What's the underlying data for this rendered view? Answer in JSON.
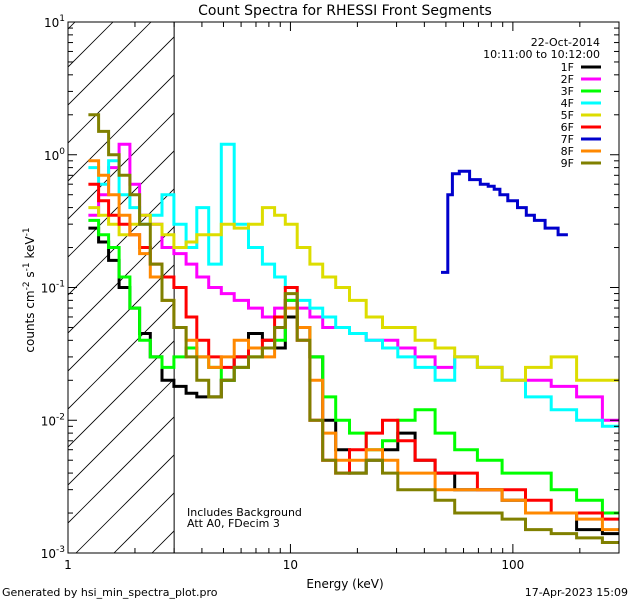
{
  "chart_data": {
    "type": "line",
    "title": "Count Spectra for RHESSI Front Segments",
    "xlabel": "Energy (keV)",
    "ylabel_parts": [
      "counts cm",
      "-2",
      " s",
      "-1",
      " keV",
      "-1"
    ],
    "xscale": "log",
    "yscale": "log",
    "xlim": [
      1,
      300
    ],
    "ylim": [
      0.001,
      10
    ],
    "x_ticks": [
      {
        "value": 1,
        "label": "1"
      },
      {
        "value": 10,
        "label": "10"
      },
      {
        "value": 100,
        "label": "100"
      }
    ],
    "y_ticks": [
      {
        "value": 0.001,
        "base": "10",
        "exp": "-3"
      },
      {
        "value": 0.01,
        "base": "10",
        "exp": "-2"
      },
      {
        "value": 0.1,
        "base": "10",
        "exp": "-1"
      },
      {
        "value": 1,
        "base": "10",
        "exp": "0"
      },
      {
        "value": 10,
        "base": "10",
        "exp": "1"
      }
    ],
    "hatched_region": {
      "x_from": 1,
      "x_to": 3
    },
    "legend": {
      "placement": "top-right",
      "date": "22-Oct-2014",
      "time_range": "10:11:00 to 10:12:00"
    },
    "annotations": [
      "Includes Background",
      "Att A0, FDecim 3"
    ],
    "series": [
      {
        "name": "1F",
        "color": "#000000",
        "x": [
          1.3,
          1.45,
          1.6,
          1.8,
          2.0,
          2.2,
          2.5,
          2.8,
          3.2,
          3.6,
          4.0,
          4.6,
          5.2,
          6.0,
          7.0,
          8.0,
          9.0,
          10.0,
          11.5,
          13.0,
          15.0,
          17.0,
          20.0,
          24.0,
          28.0,
          33.0,
          40.0,
          50.0,
          60.0,
          80.0,
          100.0,
          130.0,
          170.0,
          220.0,
          290.0
        ],
        "y": [
          0.28,
          0.22,
          0.16,
          0.1,
          0.07,
          0.045,
          0.03,
          0.02,
          0.018,
          0.016,
          0.015,
          0.015,
          0.02,
          0.03,
          0.045,
          0.04,
          0.035,
          0.06,
          0.05,
          0.03,
          0.01,
          0.006,
          0.004,
          0.005,
          0.006,
          0.008,
          0.005,
          0.004,
          0.003,
          0.003,
          0.0025,
          0.002,
          0.002,
          0.0015,
          0.0014
        ]
      },
      {
        "name": "2F",
        "color": "#ff00ff",
        "x": [
          1.3,
          1.45,
          1.6,
          1.8,
          2.0,
          2.2,
          2.5,
          2.8,
          3.2,
          3.6,
          4.0,
          4.6,
          5.2,
          6.0,
          7.0,
          8.0,
          9.0,
          10.0,
          11.5,
          13.0,
          15.0,
          17.0,
          20.0,
          24.0,
          28.0,
          33.0,
          40.0,
          50.0,
          60.0,
          80.0,
          100.0,
          130.0,
          170.0,
          220.0,
          290.0
        ],
        "y": [
          0.35,
          0.5,
          0.8,
          1.2,
          0.6,
          0.35,
          0.3,
          0.2,
          0.18,
          0.15,
          0.12,
          0.1,
          0.09,
          0.08,
          0.07,
          0.06,
          0.07,
          0.08,
          0.07,
          0.06,
          0.05,
          0.05,
          0.045,
          0.04,
          0.04,
          0.035,
          0.03,
          0.025,
          0.03,
          0.025,
          0.02,
          0.02,
          0.018,
          0.015,
          0.01
        ]
      },
      {
        "name": "3F",
        "color": "#00ff00",
        "x": [
          1.3,
          1.45,
          1.6,
          1.8,
          2.0,
          2.2,
          2.5,
          2.8,
          3.2,
          3.6,
          4.0,
          4.6,
          5.2,
          6.0,
          7.0,
          8.0,
          9.0,
          10.0,
          11.5,
          13.0,
          15.0,
          17.0,
          20.0,
          24.0,
          28.0,
          33.0,
          40.0,
          50.0,
          60.0,
          80.0,
          100.0,
          130.0,
          170.0,
          220.0,
          290.0
        ],
        "y": [
          0.32,
          0.25,
          0.2,
          0.12,
          0.07,
          0.04,
          0.03,
          0.025,
          0.03,
          0.035,
          0.03,
          0.025,
          0.02,
          0.025,
          0.03,
          0.035,
          0.04,
          0.08,
          0.05,
          0.03,
          0.015,
          0.01,
          0.008,
          0.006,
          0.007,
          0.01,
          0.012,
          0.008,
          0.006,
          0.005,
          0.004,
          0.004,
          0.003,
          0.0025,
          0.002
        ]
      },
      {
        "name": "4F",
        "color": "#00ffff",
        "x": [
          1.3,
          1.45,
          1.6,
          1.8,
          2.0,
          2.2,
          2.5,
          2.8,
          3.2,
          3.6,
          4.0,
          4.6,
          5.2,
          6.0,
          7.0,
          8.0,
          9.0,
          10.0,
          11.5,
          13.0,
          15.0,
          17.0,
          20.0,
          24.0,
          28.0,
          33.0,
          40.0,
          50.0,
          60.0,
          80.0,
          100.0,
          130.0,
          170.0,
          220.0,
          290.0
        ],
        "y": [
          0.8,
          0.6,
          0.9,
          0.5,
          0.4,
          0.3,
          0.35,
          0.5,
          0.3,
          0.2,
          0.4,
          0.15,
          1.2,
          0.3,
          0.2,
          0.15,
          0.12,
          0.1,
          0.08,
          0.07,
          0.06,
          0.05,
          0.045,
          0.04,
          0.035,
          0.03,
          0.025,
          0.02,
          0.03,
          0.025,
          0.02,
          0.015,
          0.012,
          0.01,
          0.009
        ]
      },
      {
        "name": "5F",
        "color": "#dddd00",
        "x": [
          1.3,
          1.45,
          1.6,
          1.8,
          2.0,
          2.2,
          2.5,
          2.8,
          3.2,
          3.6,
          4.0,
          4.6,
          5.2,
          6.0,
          7.0,
          8.0,
          9.0,
          10.0,
          11.5,
          13.0,
          15.0,
          17.0,
          20.0,
          24.0,
          28.0,
          33.0,
          40.0,
          50.0,
          60.0,
          80.0,
          100.0,
          130.0,
          170.0,
          220.0,
          290.0
        ],
        "y": [
          0.4,
          0.35,
          0.3,
          0.25,
          0.3,
          0.35,
          0.3,
          0.25,
          0.2,
          0.22,
          0.25,
          0.25,
          0.3,
          0.28,
          0.3,
          0.4,
          0.35,
          0.3,
          0.2,
          0.15,
          0.12,
          0.1,
          0.08,
          0.06,
          0.05,
          0.05,
          0.04,
          0.035,
          0.03,
          0.025,
          0.02,
          0.025,
          0.03,
          0.02,
          0.02
        ]
      },
      {
        "name": "6F",
        "color": "#ff0000",
        "x": [
          1.3,
          1.45,
          1.6,
          1.8,
          2.0,
          2.2,
          2.5,
          2.8,
          3.2,
          3.6,
          4.0,
          4.6,
          5.2,
          6.0,
          7.0,
          8.0,
          9.0,
          10.0,
          11.5,
          13.0,
          15.0,
          17.0,
          20.0,
          24.0,
          28.0,
          33.0,
          40.0,
          50.0,
          60.0,
          80.0,
          100.0,
          130.0,
          170.0,
          220.0,
          290.0
        ],
        "y": [
          0.6,
          0.45,
          0.35,
          0.3,
          0.25,
          0.2,
          0.15,
          0.12,
          0.1,
          0.06,
          0.04,
          0.03,
          0.025,
          0.03,
          0.035,
          0.04,
          0.06,
          0.1,
          0.04,
          0.01,
          0.005,
          0.004,
          0.006,
          0.008,
          0.01,
          0.007,
          0.005,
          0.004,
          0.004,
          0.003,
          0.003,
          0.0025,
          0.002,
          0.002,
          0.0018
        ]
      },
      {
        "name": "7F",
        "color": "#0000cc",
        "x": [
          50,
          52,
          55,
          60,
          68,
          75,
          80,
          85,
          90,
          100,
          110,
          120,
          130,
          150,
          170
        ],
        "y": [
          0.13,
          0.5,
          0.72,
          0.75,
          0.65,
          0.6,
          0.58,
          0.55,
          0.5,
          0.45,
          0.4,
          0.35,
          0.32,
          0.28,
          0.25
        ]
      },
      {
        "name": "8F",
        "color": "#ff8800",
        "x": [
          1.3,
          1.45,
          1.6,
          1.8,
          2.0,
          2.2,
          2.5,
          2.8,
          3.2,
          3.6,
          4.0,
          4.6,
          5.2,
          6.0,
          7.0,
          8.0,
          9.0,
          10.0,
          11.5,
          13.0,
          15.0,
          17.0,
          20.0,
          24.0,
          28.0,
          33.0,
          40.0,
          50.0,
          60.0,
          80.0,
          100.0,
          130.0,
          170.0,
          220.0,
          290.0
        ],
        "y": [
          0.9,
          0.7,
          0.5,
          0.35,
          0.25,
          0.18,
          0.12,
          0.08,
          0.05,
          0.04,
          0.03,
          0.025,
          0.03,
          0.04,
          0.035,
          0.03,
          0.05,
          0.07,
          0.05,
          0.02,
          0.008,
          0.005,
          0.005,
          0.006,
          0.005,
          0.004,
          0.004,
          0.003,
          0.003,
          0.003,
          0.0025,
          0.002,
          0.002,
          0.0018,
          0.0015
        ]
      },
      {
        "name": "9F",
        "color": "#808000",
        "x": [
          1.3,
          1.45,
          1.6,
          1.8,
          2.0,
          2.2,
          2.5,
          2.8,
          3.2,
          3.6,
          4.0,
          4.6,
          5.2,
          6.0,
          7.0,
          8.0,
          9.0,
          10.0,
          11.5,
          13.0,
          15.0,
          17.0,
          20.0,
          24.0,
          28.0,
          33.0,
          40.0,
          50.0,
          60.0,
          80.0,
          100.0,
          130.0,
          170.0,
          220.0,
          290.0
        ],
        "y": [
          2.0,
          1.5,
          1.0,
          0.7,
          0.5,
          0.3,
          0.15,
          0.08,
          0.05,
          0.03,
          0.02,
          0.015,
          0.02,
          0.025,
          0.03,
          0.035,
          0.05,
          0.09,
          0.04,
          0.01,
          0.005,
          0.004,
          0.004,
          0.005,
          0.004,
          0.003,
          0.003,
          0.0025,
          0.002,
          0.002,
          0.0018,
          0.0015,
          0.0014,
          0.0013,
          0.0012
        ]
      }
    ]
  },
  "footer": {
    "left": "Generated by hsi_min_spectra_plot.pro",
    "right": "17-Apr-2023 15:09"
  }
}
